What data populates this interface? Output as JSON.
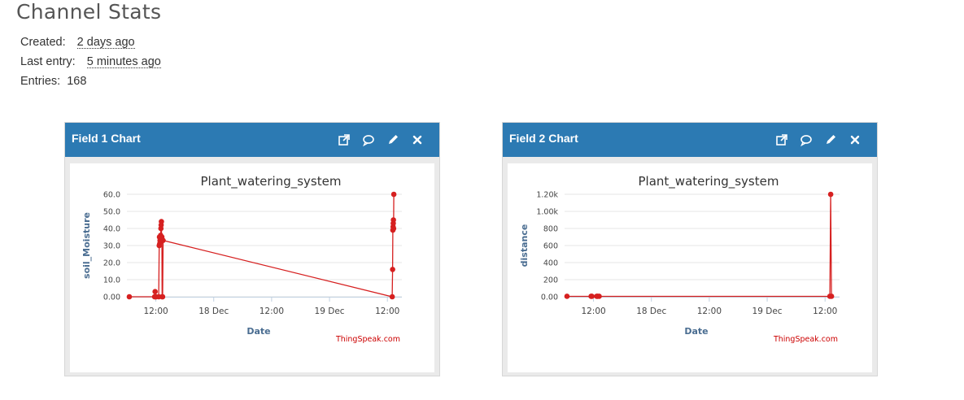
{
  "page": {
    "title": "Channel Stats",
    "stats": [
      {
        "label": "Created:",
        "value": "2 days ago",
        "dotted": true
      },
      {
        "label": "Last entry:",
        "value": "5 minutes ago",
        "dotted": true
      },
      {
        "label": "Entries:",
        "value": "168",
        "dotted": false
      }
    ]
  },
  "panels": [
    {
      "title": "Field 1 Chart",
      "icons": [
        "external-link-icon",
        "comment-icon",
        "pencil-icon",
        "close-icon"
      ]
    },
    {
      "title": "Field 2 Chart",
      "icons": [
        "external-link-icon",
        "comment-icon",
        "pencil-icon",
        "close-icon"
      ]
    }
  ],
  "colors": {
    "header": "#2c7ab3",
    "series": "#d62020",
    "title": "#333333",
    "axis_label": "#4a6d91",
    "credit": "#cc0000"
  },
  "chart_data": [
    {
      "type": "line",
      "title": "Plant_watering_system",
      "xlabel": "Date",
      "ylabel": "soil_Moisture",
      "credit": "ThingSpeak.com",
      "xlim": [
        "2023-12-17T06:00",
        "2023-12-19T15:00"
      ],
      "ylim": [
        0,
        60
      ],
      "yticks": [
        "0.00",
        "10.0",
        "20.0",
        "30.0",
        "40.0",
        "50.0",
        "60.0"
      ],
      "yticks_values": [
        0,
        10,
        20,
        30,
        40,
        50,
        60
      ],
      "xticks": [
        {
          "t": "2023-12-17T12:00",
          "label": "12:00"
        },
        {
          "t": "2023-12-18T00:00",
          "label": "18 Dec"
        },
        {
          "t": "2023-12-18T12:00",
          "label": "12:00"
        },
        {
          "t": "2023-12-19T00:00",
          "label": "19 Dec"
        },
        {
          "t": "2023-12-19T12:00",
          "label": "12:00"
        }
      ],
      "grid": true,
      "series": [
        {
          "points": [
            [
              "2023-12-17T06:30",
              0
            ],
            [
              "2023-12-17T11:45",
              0
            ],
            [
              "2023-12-17T11:51",
              3
            ],
            [
              "2023-12-17T11:57",
              0
            ],
            [
              "2023-12-17T12:00",
              0
            ],
            [
              "2023-12-17T12:36",
              0
            ],
            [
              "2023-12-17T12:42",
              30
            ],
            [
              "2023-12-17T12:45",
              35
            ],
            [
              "2023-12-17T12:48",
              31
            ],
            [
              "2023-12-17T12:52",
              33
            ],
            [
              "2023-12-17T12:55",
              32
            ],
            [
              "2023-12-17T12:58",
              33
            ],
            [
              "2023-12-17T13:00",
              36
            ],
            [
              "2023-12-17T13:03",
              40
            ],
            [
              "2023-12-17T13:06",
              42
            ],
            [
              "2023-12-17T13:09",
              44
            ],
            [
              "2023-12-17T13:12",
              34
            ],
            [
              "2023-12-17T13:15",
              35
            ],
            [
              "2023-12-17T13:18",
              0
            ],
            [
              "2023-12-17T13:24",
              0
            ],
            [
              "2023-12-17T13:30",
              33
            ],
            [
              "2023-12-19T13:00",
              0
            ],
            [
              "2023-12-19T13:05",
              16
            ],
            [
              "2023-12-19T13:08",
              39
            ],
            [
              "2023-12-19T13:11",
              41
            ],
            [
              "2023-12-19T13:13",
              43
            ],
            [
              "2023-12-19T13:15",
              45
            ],
            [
              "2023-12-19T13:17",
              40
            ],
            [
              "2023-12-19T13:20",
              60
            ]
          ]
        }
      ]
    },
    {
      "type": "line",
      "title": "Plant_watering_system",
      "xlabel": "Date",
      "ylabel": "distance",
      "credit": "ThingSpeak.com",
      "xlim": [
        "2023-12-17T06:00",
        "2023-12-19T15:00"
      ],
      "ylim": [
        0,
        1200
      ],
      "yticks": [
        "0.00",
        "200",
        "400",
        "600",
        "800",
        "1.00k",
        "1.20k"
      ],
      "yticks_values": [
        0,
        200,
        400,
        600,
        800,
        1000,
        1200
      ],
      "xticks": [
        {
          "t": "2023-12-17T12:00",
          "label": "12:00"
        },
        {
          "t": "2023-12-18T00:00",
          "label": "18 Dec"
        },
        {
          "t": "2023-12-18T12:00",
          "label": "12:00"
        },
        {
          "t": "2023-12-19T00:00",
          "label": "19 Dec"
        },
        {
          "t": "2023-12-19T12:00",
          "label": "12:00"
        }
      ],
      "grid": true,
      "series": [
        {
          "points": [
            [
              "2023-12-17T06:30",
              5
            ],
            [
              "2023-12-17T11:30",
              5
            ],
            [
              "2023-12-17T11:40",
              5
            ],
            [
              "2023-12-17T12:40",
              5
            ],
            [
              "2023-12-17T12:50",
              5
            ],
            [
              "2023-12-17T13:10",
              5
            ],
            [
              "2023-12-19T13:00",
              5
            ],
            [
              "2023-12-19T13:10",
              1200
            ],
            [
              "2023-12-19T13:20",
              5
            ]
          ]
        }
      ]
    }
  ]
}
